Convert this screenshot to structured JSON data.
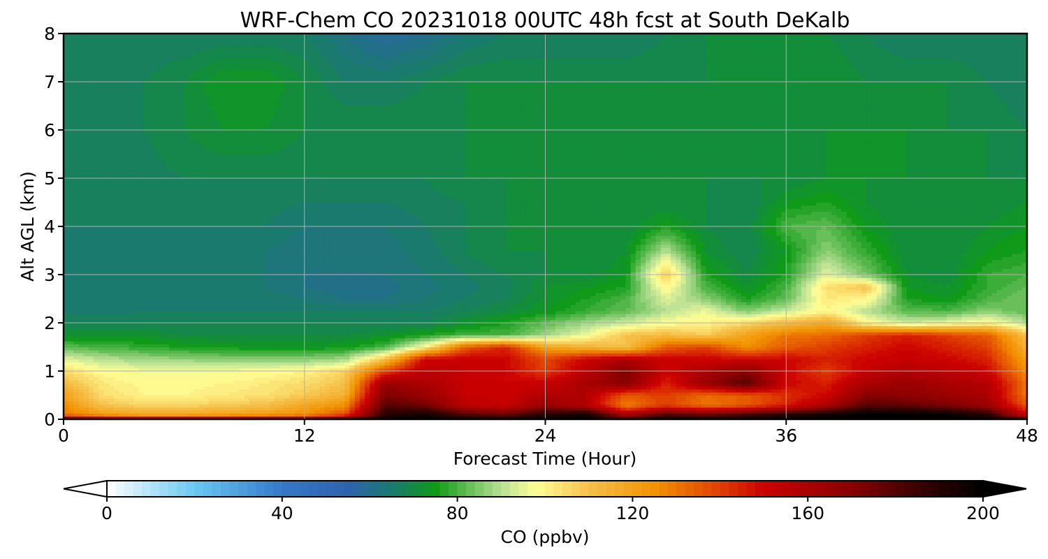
{
  "chart_data": {
    "type": "heatmap",
    "title": "WRF-Chem CO  20231018 00UTC 48h fcst at South DeKalb",
    "xlabel": "Forecast Time (Hour)",
    "ylabel": "Alt AGL (km)",
    "xlim": [
      0,
      48
    ],
    "ylim": [
      0,
      8
    ],
    "x_ticks": [
      0,
      12,
      24,
      36,
      48
    ],
    "y_ticks": [
      0,
      1,
      2,
      3,
      4,
      5,
      6,
      7,
      8
    ],
    "grid": true,
    "colorbar": {
      "label": "CO  (ppbv)",
      "min": 0,
      "max": 200,
      "ticks": [
        0,
        40,
        80,
        120,
        160,
        200
      ],
      "extend": "both",
      "levels": 100,
      "placement": "bottom",
      "color_stops": [
        {
          "v": 0,
          "c": "#ffffff"
        },
        {
          "v": 20,
          "c": "#6ac8f2"
        },
        {
          "v": 40,
          "c": "#3578c8"
        },
        {
          "v": 55,
          "c": "#2f62ac"
        },
        {
          "v": 65,
          "c": "#1a7a6e"
        },
        {
          "v": 75,
          "c": "#0f9a18"
        },
        {
          "v": 90,
          "c": "#b8e094"
        },
        {
          "v": 98,
          "c": "#ffff96"
        },
        {
          "v": 110,
          "c": "#f6c04a"
        },
        {
          "v": 125,
          "c": "#f29200"
        },
        {
          "v": 140,
          "c": "#e03e00"
        },
        {
          "v": 150,
          "c": "#cc0000"
        },
        {
          "v": 170,
          "c": "#880000"
        },
        {
          "v": 185,
          "c": "#3a0000"
        },
        {
          "v": 200,
          "c": "#000000"
        }
      ]
    },
    "grid_values": {
      "x_hours": [
        0,
        2,
        4,
        6,
        8,
        10,
        12,
        14,
        16,
        18,
        20,
        22,
        24,
        26,
        28,
        30,
        32,
        34,
        36,
        38,
        40,
        42,
        44,
        46,
        48
      ],
      "z_km": [
        0,
        0.1,
        0.3,
        0.5,
        0.75,
        1.0,
        1.25,
        1.5,
        1.75,
        2.0,
        2.25,
        2.5,
        2.75,
        3.0,
        3.5,
        4.0,
        4.5,
        5.0,
        6.0,
        7.0,
        8.0
      ],
      "values": [
        [
          190,
          180,
          178,
          178,
          180,
          182,
          185,
          190,
          198,
          200,
          200,
          200,
          200,
          200,
          188,
          200,
          200,
          200,
          200,
          200,
          200,
          200,
          200,
          200,
          190
        ],
        [
          130,
          122,
          118,
          118,
          120,
          122,
          125,
          138,
          190,
          195,
          180,
          176,
          190,
          195,
          160,
          180,
          175,
          182,
          190,
          195,
          200,
          200,
          198,
          190,
          150
        ],
        [
          125,
          110,
          106,
          106,
          108,
          110,
          118,
          125,
          180,
          175,
          155,
          152,
          165,
          158,
          128,
          140,
          130,
          135,
          145,
          160,
          180,
          178,
          172,
          165,
          135
        ],
        [
          120,
          104,
          100,
          100,
          102,
          104,
          108,
          115,
          172,
          165,
          152,
          150,
          158,
          158,
          135,
          140,
          132,
          135,
          142,
          150,
          170,
          168,
          165,
          160,
          130
        ],
        [
          112,
          102,
          99,
          99,
          100,
          102,
          105,
          110,
          165,
          160,
          152,
          150,
          152,
          160,
          170,
          145,
          165,
          180,
          150,
          145,
          160,
          165,
          160,
          158,
          130
        ],
        [
          105,
          98,
          97,
          97,
          97,
          98,
          100,
          106,
          140,
          155,
          152,
          150,
          140,
          155,
          172,
          150,
          160,
          170,
          150,
          140,
          152,
          158,
          155,
          150,
          125
        ],
        [
          95,
          90,
          88,
          87,
          86,
          86,
          86,
          88,
          110,
          150,
          152,
          150,
          138,
          150,
          158,
          150,
          150,
          150,
          150,
          145,
          150,
          152,
          150,
          145,
          120
        ],
        [
          82,
          80,
          78,
          76,
          75,
          74,
          74,
          75,
          80,
          100,
          135,
          145,
          120,
          115,
          110,
          135,
          140,
          125,
          135,
          140,
          145,
          150,
          145,
          140,
          115
        ],
        [
          72,
          72,
          72,
          70,
          70,
          70,
          70,
          70,
          72,
          76,
          80,
          80,
          88,
          96,
          110,
          112,
          108,
          120,
          130,
          132,
          140,
          145,
          140,
          135,
          110
        ],
        [
          68,
          68,
          68,
          68,
          68,
          68,
          68,
          68,
          68,
          68,
          72,
          76,
          82,
          88,
          92,
          98,
          100,
          105,
          112,
          118,
          100,
          92,
          96,
          100,
          90
        ],
        [
          65,
          65,
          66,
          66,
          66,
          66,
          66,
          66,
          66,
          66,
          68,
          70,
          74,
          78,
          82,
          90,
          96,
          85,
          92,
          100,
          90,
          82,
          80,
          86,
          82
        ],
        [
          64,
          64,
          65,
          65,
          65,
          65,
          64,
          62,
          62,
          64,
          66,
          68,
          72,
          76,
          80,
          94,
          86,
          76,
          82,
          102,
          100,
          76,
          74,
          80,
          84
        ],
        [
          64,
          64,
          65,
          65,
          65,
          64,
          62,
          61,
          61,
          63,
          65,
          67,
          72,
          74,
          76,
          100,
          80,
          72,
          80,
          104,
          110,
          74,
          72,
          78,
          82
        ],
        [
          64,
          64,
          65,
          65,
          65,
          64,
          62,
          62,
          62,
          64,
          66,
          68,
          70,
          70,
          74,
          108,
          76,
          70,
          76,
          95,
          84,
          72,
          70,
          78,
          80
        ],
        [
          64,
          64,
          65,
          65,
          65,
          64,
          62,
          62,
          63,
          65,
          68,
          70,
          70,
          70,
          72,
          90,
          72,
          68,
          74,
          86,
          78,
          70,
          70,
          74,
          76
        ],
        [
          66,
          66,
          66,
          66,
          66,
          66,
          64,
          64,
          64,
          66,
          68,
          70,
          70,
          70,
          70,
          76,
          70,
          68,
          80,
          82,
          74,
          70,
          70,
          72,
          74
        ],
        [
          66,
          66,
          67,
          67,
          67,
          67,
          66,
          66,
          66,
          67,
          68,
          70,
          70,
          70,
          70,
          70,
          70,
          68,
          74,
          76,
          72,
          70,
          70,
          70,
          72
        ],
        [
          66,
          66,
          67,
          68,
          68,
          68,
          68,
          68,
          68,
          68,
          70,
          70,
          70,
          70,
          70,
          70,
          70,
          70,
          70,
          72,
          72,
          72,
          70,
          70,
          70
        ],
        [
          66,
          67,
          68,
          70,
          72,
          72,
          70,
          70,
          70,
          70,
          70,
          70,
          70,
          70,
          70,
          70,
          70,
          70,
          70,
          72,
          72,
          72,
          70,
          70,
          68
        ],
        [
          66,
          67,
          68,
          70,
          74,
          74,
          70,
          66,
          66,
          68,
          70,
          70,
          70,
          70,
          70,
          70,
          70,
          70,
          72,
          72,
          70,
          70,
          70,
          68,
          66
        ],
        [
          66,
          66,
          66,
          66,
          66,
          66,
          66,
          62,
          58,
          60,
          64,
          66,
          66,
          66,
          66,
          68,
          70,
          70,
          70,
          70,
          68,
          66,
          66,
          66,
          66
        ]
      ]
    }
  }
}
